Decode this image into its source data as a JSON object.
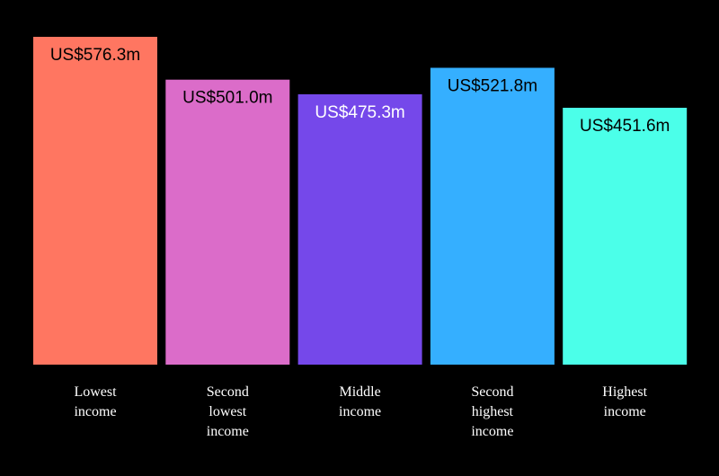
{
  "chart_data": {
    "type": "bar",
    "title": "",
    "xlabel": "",
    "ylabel": "",
    "ylim": [
      0,
      576.3
    ],
    "grid": false,
    "legend": "none",
    "categories": [
      [
        "Lowest",
        "income"
      ],
      [
        "Second",
        "lowest",
        "income"
      ],
      [
        "Middle",
        "income"
      ],
      [
        "Second",
        "highest",
        "income"
      ],
      [
        "Highest",
        "income"
      ]
    ],
    "values": [
      576.3,
      501.0,
      475.3,
      521.8,
      451.6
    ],
    "value_labels": [
      "US$576.3m",
      "US$501.0m",
      "US$475.3m",
      "US$521.8m",
      "US$451.6m"
    ],
    "colors": [
      "#FF7661",
      "#DB6CC9",
      "#7548EA",
      "#35AFFF",
      "#4BFFE9"
    ],
    "label_colors": [
      "#000000",
      "#000000",
      "#ffffff",
      "#000000",
      "#000000"
    ],
    "background": "#000000"
  }
}
